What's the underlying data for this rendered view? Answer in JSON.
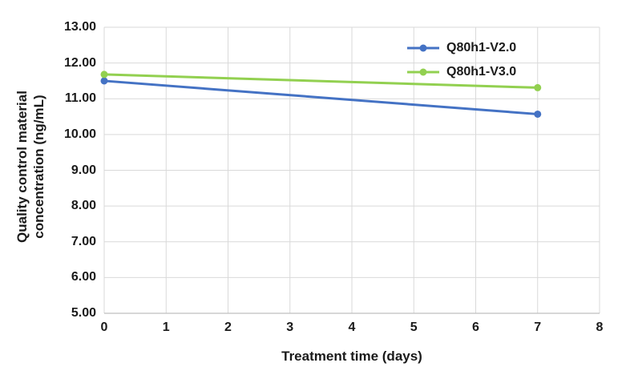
{
  "chart_data": {
    "type": "line",
    "title": "",
    "xlabel": "Treatment time (days)",
    "ylabel": "Quality control material concentration (ng/mL)",
    "xlim": [
      0,
      8
    ],
    "ylim": [
      5,
      13
    ],
    "x_ticks": [
      0,
      1,
      2,
      3,
      4,
      5,
      6,
      7,
      8
    ],
    "y_ticks": [
      5,
      6,
      7,
      8,
      9,
      10,
      11,
      12,
      13
    ],
    "y_tick_decimals": 2,
    "grid": true,
    "legend_position": "top-right-inside",
    "series": [
      {
        "name": "Q80h1-V2.0",
        "color": "#4472C4",
        "x": [
          0,
          7
        ],
        "values": [
          11.5,
          10.57
        ]
      },
      {
        "name": "Q80h1-V3.0",
        "color": "#92D050",
        "x": [
          0,
          7
        ],
        "values": [
          11.68,
          11.31
        ]
      }
    ]
  },
  "colors": {
    "grid": "#D9D9D9",
    "axis": "#BFBFBF",
    "text": "#1a1a1a",
    "background": "#ffffff"
  }
}
